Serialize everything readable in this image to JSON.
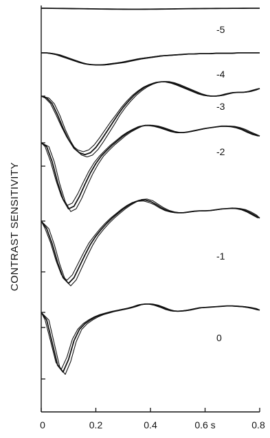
{
  "chart_data": {
    "type": "line",
    "title": "",
    "xlabel": "",
    "ylabel": "CONTRAST SENSITIVITY",
    "xlim": [
      0,
      0.8
    ],
    "x_ticks": [
      "0",
      "0.2",
      "0.4",
      "0.6 s",
      "0.8"
    ],
    "grid": false,
    "legend": "none",
    "line_color": "#111111",
    "x": [
      0,
      0.02,
      0.04,
      0.06,
      0.08,
      0.1,
      0.12,
      0.14,
      0.16,
      0.18,
      0.2,
      0.22,
      0.24,
      0.26,
      0.28,
      0.3,
      0.32,
      0.34,
      0.36,
      0.38,
      0.4,
      0.42,
      0.44,
      0.46,
      0.48,
      0.5,
      0.52,
      0.54,
      0.56,
      0.58,
      0.6,
      0.62,
      0.64,
      0.66,
      0.68,
      0.7,
      0.72,
      0.74,
      0.76,
      0.78,
      0.8
    ],
    "series": [
      {
        "label": "-5",
        "values": [
          0,
          0,
          -0.002,
          -0.004,
          -0.006,
          -0.008,
          -0.01,
          -0.012,
          -0.014,
          -0.016,
          -0.018,
          -0.02,
          -0.022,
          -0.024,
          -0.025,
          -0.026,
          -0.027,
          -0.027,
          -0.027,
          -0.026,
          -0.025,
          -0.024,
          -0.022,
          -0.02,
          -0.018,
          -0.016,
          -0.014,
          -0.012,
          -0.01,
          -0.009,
          -0.008,
          -0.007,
          -0.006,
          -0.005,
          -0.004,
          -0.003,
          -0.002,
          -0.001,
          0,
          0,
          0
        ]
      },
      {
        "label": "-4",
        "values": [
          0,
          0,
          -0.02,
          -0.05,
          -0.1,
          -0.15,
          -0.2,
          -0.25,
          -0.29,
          -0.31,
          -0.32,
          -0.32,
          -0.31,
          -0.29,
          -0.27,
          -0.25,
          -0.22,
          -0.19,
          -0.16,
          -0.14,
          -0.12,
          -0.1,
          -0.08,
          -0.07,
          -0.06,
          -0.05,
          -0.04,
          -0.03,
          -0.03,
          -0.02,
          -0.02,
          -0.02,
          -0.01,
          -0.01,
          -0.01,
          -0.01,
          0,
          0,
          0,
          0,
          0
        ]
      },
      {
        "label": "-3",
        "values": [
          0,
          -0.05,
          -0.2,
          -0.5,
          -0.85,
          -1.15,
          -1.38,
          -1.5,
          -1.55,
          -1.5,
          -1.36,
          -1.16,
          -0.94,
          -0.72,
          -0.5,
          -0.3,
          -0.13,
          0.02,
          0.14,
          0.24,
          0.31,
          0.36,
          0.38,
          0.38,
          0.35,
          0.3,
          0.24,
          0.18,
          0.12,
          0.06,
          0.02,
          0,
          0,
          0.02,
          0.06,
          0.09,
          0.1,
          0.1,
          0.12,
          0.16,
          0.2
        ]
      },
      {
        "label": "-2",
        "values": [
          0,
          -0.1,
          -0.5,
          -1.05,
          -1.5,
          -1.75,
          -1.68,
          -1.42,
          -1.1,
          -0.8,
          -0.55,
          -0.35,
          -0.2,
          -0.06,
          0.06,
          0.18,
          0.28,
          0.36,
          0.43,
          0.46,
          0.46,
          0.44,
          0.4,
          0.35,
          0.3,
          0.27,
          0.27,
          0.29,
          0.32,
          0.35,
          0.38,
          0.4,
          0.42,
          0.44,
          0.44,
          0.43,
          0.4,
          0.35,
          0.28,
          0.22,
          0.18
        ]
      },
      {
        "label": "-1",
        "values": [
          0,
          -0.2,
          -0.6,
          -1.1,
          -1.5,
          -1.65,
          -1.5,
          -1.2,
          -0.9,
          -0.62,
          -0.4,
          -0.22,
          -0.06,
          0.08,
          0.2,
          0.32,
          0.42,
          0.5,
          0.55,
          0.56,
          0.52,
          0.44,
          0.35,
          0.28,
          0.24,
          0.22,
          0.22,
          0.24,
          0.26,
          0.27,
          0.27,
          0.28,
          0.3,
          0.32,
          0.33,
          0.34,
          0.33,
          0.3,
          0.24,
          0.16,
          0.08
        ]
      },
      {
        "label": "0",
        "values": [
          0,
          -0.2,
          -0.8,
          -1.4,
          -1.58,
          -1.25,
          -0.75,
          -0.45,
          -0.3,
          -0.2,
          -0.12,
          -0.06,
          -0.02,
          0.02,
          0.05,
          0.08,
          0.11,
          0.15,
          0.2,
          0.22,
          0.22,
          0.19,
          0.14,
          0.08,
          0.04,
          0.03,
          0.04,
          0.06,
          0.09,
          0.12,
          0.13,
          0.14,
          0.15,
          0.16,
          0.17,
          0.17,
          0.16,
          0.15,
          0.13,
          0.1,
          0.06
        ]
      }
    ]
  }
}
